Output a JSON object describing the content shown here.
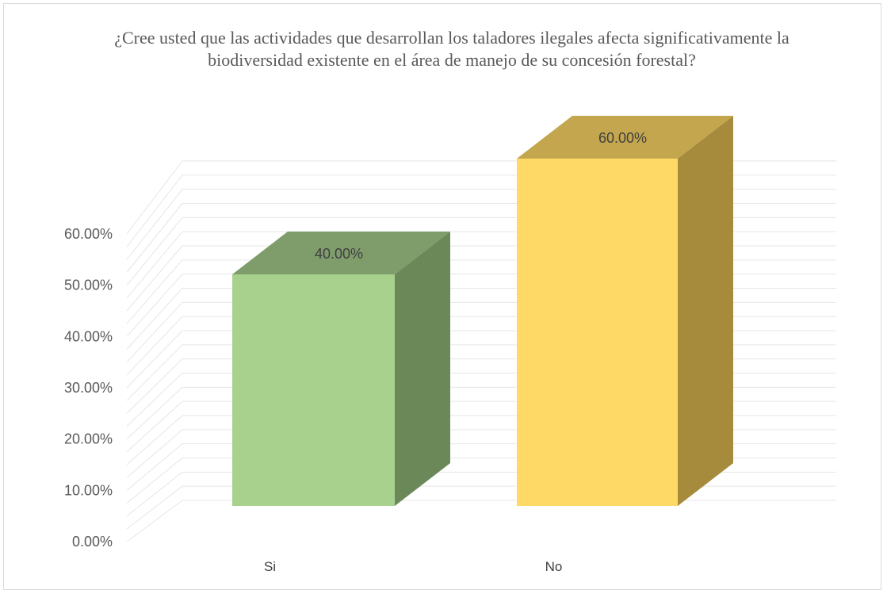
{
  "chart_data": {
    "type": "bar",
    "style": "3d-column",
    "title": "¿Cree usted que las actividades que desarrollan los taladores ilegales afecta significativamente la biodiversidad existente en el área de manejo de su concesión forestal?",
    "categories": [
      "Si",
      "No"
    ],
    "values": [
      0.4,
      0.6
    ],
    "data_labels": [
      "40.00%",
      "60.00%"
    ],
    "ylim": [
      0,
      0.6
    ],
    "y_ticks": [
      "0.00%",
      "10.00%",
      "20.00%",
      "30.00%",
      "40.00%",
      "50.00%",
      "60.00%"
    ],
    "xlabel": "",
    "ylabel": "",
    "grid": true,
    "legend": "none",
    "colors": {
      "Si": {
        "front": "#a9d18e",
        "side": "#6a8858",
        "top": "#7f9c6b"
      },
      "No": {
        "front": "#ffd966",
        "side": "#a68b3c",
        "top": "#c4a64e"
      },
      "grid": "#e6e6e6",
      "text": "#595959"
    }
  }
}
